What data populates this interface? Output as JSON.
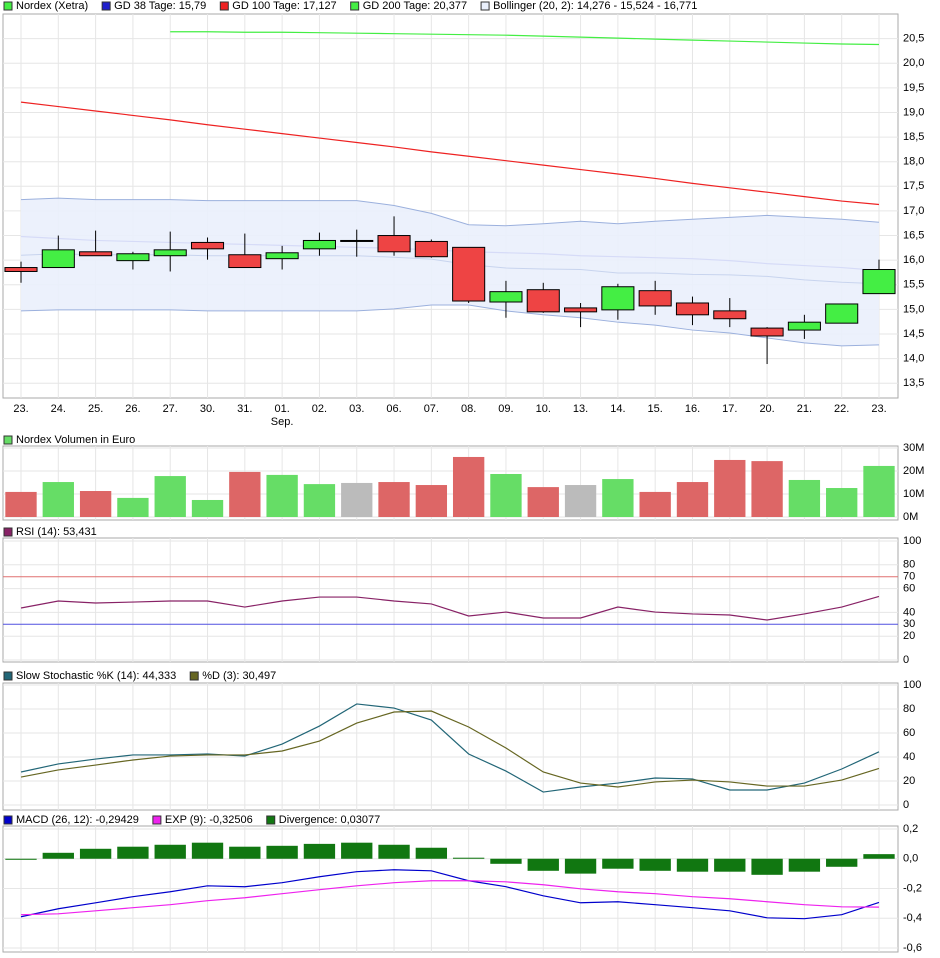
{
  "chart_data": [
    {
      "type": "candlestick",
      "categories": [
        "23.",
        "24.",
        "25.",
        "26.",
        "27.",
        "30.",
        "31.",
        "01.",
        "02.",
        "03.",
        "06.",
        "07.",
        "08.",
        "09.",
        "10.",
        "13.",
        "14.",
        "15.",
        "16.",
        "17.",
        "20.",
        "21.",
        "22.",
        "23."
      ],
      "sublabels": [
        null,
        null,
        null,
        null,
        null,
        null,
        null,
        "Sep.",
        null,
        null,
        null,
        null,
        null,
        null,
        null,
        null,
        null,
        null,
        null,
        null,
        null,
        null,
        null,
        null
      ],
      "ohlc": {
        "name": "Nordex (Xetra)",
        "up_color": "#44ee44",
        "down_color": "#ee4444",
        "flat_color": "#000000",
        "open": [
          15.85,
          15.85,
          16.17,
          15.99,
          16.09,
          16.36,
          16.11,
          16.03,
          16.23,
          16.4,
          16.5,
          16.38,
          16.26,
          15.15,
          15.4,
          15.03,
          14.99,
          15.38,
          15.13,
          14.97,
          14.62,
          14.58,
          14.72,
          15.32
        ],
        "high": [
          15.97,
          16.5,
          16.6,
          16.17,
          16.58,
          16.46,
          16.54,
          16.29,
          16.56,
          16.62,
          16.89,
          16.42,
          16.26,
          15.58,
          15.54,
          15.13,
          15.52,
          15.58,
          15.26,
          15.23,
          14.64,
          14.89,
          15.11,
          16.01
        ],
        "low": [
          15.54,
          15.85,
          16.09,
          15.81,
          15.77,
          16.01,
          15.85,
          15.81,
          16.09,
          16.07,
          16.09,
          16.05,
          15.13,
          14.83,
          14.93,
          14.64,
          14.79,
          14.89,
          14.68,
          14.64,
          13.89,
          14.4,
          14.72,
          15.32
        ],
        "close": [
          15.77,
          16.21,
          16.09,
          16.13,
          16.21,
          16.23,
          15.85,
          16.15,
          16.4,
          16.4,
          16.17,
          16.07,
          15.17,
          15.36,
          14.95,
          14.95,
          15.46,
          15.07,
          14.89,
          14.81,
          14.46,
          14.74,
          15.11,
          15.81
        ]
      },
      "series": [
        {
          "name": "GD 38 Tage: 15,79",
          "color": "#2020cc",
          "style": "line",
          "values": [
            16.48,
            16.44,
            16.4,
            16.38,
            16.36,
            16.34,
            16.32,
            16.3,
            16.28,
            16.26,
            16.24,
            16.21,
            16.17,
            16.15,
            16.13,
            16.09,
            16.07,
            16.05,
            16.03,
            15.99,
            15.93,
            15.89,
            15.85,
            15.79
          ]
        },
        {
          "name": "GD 100 Tage: 17,127",
          "color": "#ee2222",
          "style": "line",
          "values": [
            19.21,
            19.12,
            19.03,
            18.94,
            18.85,
            18.75,
            18.66,
            18.57,
            18.48,
            18.39,
            18.3,
            18.2,
            18.11,
            18.02,
            17.93,
            17.84,
            17.75,
            17.66,
            17.56,
            17.47,
            17.38,
            17.29,
            17.2,
            17.13
          ]
        },
        {
          "name": "GD 200 Tage: 20,377",
          "color": "#44ee44",
          "style": "line",
          "values": [
            null,
            null,
            null,
            null,
            20.64,
            20.64,
            20.63,
            20.63,
            20.62,
            20.61,
            20.6,
            20.59,
            20.58,
            20.57,
            20.55,
            20.53,
            20.51,
            20.49,
            20.47,
            20.45,
            20.43,
            20.41,
            20.39,
            20.38
          ]
        },
        {
          "name": "Bollinger (20, 2): 14,276 - 15,524 - 16,771",
          "color": "#9bb0dd",
          "fill": "#eaf0fc",
          "style": "band",
          "upper": [
            17.23,
            17.26,
            17.23,
            17.23,
            17.23,
            17.21,
            17.21,
            17.21,
            17.21,
            17.21,
            17.11,
            16.95,
            16.72,
            16.7,
            16.74,
            16.79,
            16.74,
            16.79,
            16.83,
            16.87,
            16.91,
            16.87,
            16.83,
            16.77
          ],
          "middle": [
            16.1,
            16.13,
            16.11,
            16.11,
            16.11,
            16.09,
            16.09,
            16.09,
            16.09,
            16.09,
            16.06,
            16.02,
            15.91,
            15.84,
            15.82,
            15.81,
            15.74,
            15.74,
            15.71,
            15.7,
            15.67,
            15.6,
            15.55,
            15.52
          ],
          "lower": [
            14.97,
            14.99,
            14.99,
            14.99,
            14.99,
            14.97,
            14.97,
            14.97,
            14.97,
            14.97,
            15.01,
            15.09,
            15.09,
            14.97,
            14.89,
            14.83,
            14.74,
            14.68,
            14.58,
            14.52,
            14.42,
            14.32,
            14.26,
            14.28
          ]
        }
      ],
      "ylim": [
        13.2,
        21.0
      ],
      "yticks": [
        {
          "value": 13.5,
          "label": "13,5"
        },
        {
          "value": 14,
          "label": "14,0"
        },
        {
          "value": 14.5,
          "label": "14,5"
        },
        {
          "value": 15,
          "label": "15,0"
        },
        {
          "value": 15.5,
          "label": "15,5"
        },
        {
          "value": 16,
          "label": "16,0"
        },
        {
          "value": 16.5,
          "label": "16,5"
        },
        {
          "value": 17,
          "label": "17,0"
        },
        {
          "value": 17.5,
          "label": "17,5"
        },
        {
          "value": 18,
          "label": "18,0"
        },
        {
          "value": 18.5,
          "label": "18,5"
        },
        {
          "value": 19,
          "label": "19,0"
        },
        {
          "value": 19.5,
          "label": "19,5"
        },
        {
          "value": 20,
          "label": "20,0"
        },
        {
          "value": 20.5,
          "label": "20,5"
        }
      ],
      "grid": true
    },
    {
      "type": "bar",
      "series": [
        {
          "name": "Nordex Volumen in Euro",
          "color": "#66dd66",
          "style": "bar",
          "values": [
            10.9,
            15.2,
            11.3,
            8.3,
            17.8,
            7.4,
            19.6,
            18.3,
            14.3,
            14.8,
            15.2,
            13.9,
            26.1,
            18.7,
            13.0,
            13.9,
            16.5,
            10.9,
            15.2,
            24.8,
            24.3,
            16.1,
            12.6,
            22.2
          ],
          "colors": [
            "#dd6666",
            "#66dd66",
            "#dd6666",
            "#66dd66",
            "#66dd66",
            "#66dd66",
            "#dd6666",
            "#66dd66",
            "#66dd66",
            "#bbbbbb",
            "#dd6666",
            "#dd6666",
            "#dd6666",
            "#66dd66",
            "#dd6666",
            "#bbbbbb",
            "#66dd66",
            "#dd6666",
            "#dd6666",
            "#dd6666",
            "#dd6666",
            "#66dd66",
            "#66dd66",
            "#66dd66"
          ]
        }
      ],
      "ylim": [
        0,
        30
      ],
      "yticks": [
        {
          "value": 0,
          "label": "0M"
        },
        {
          "value": 10,
          "label": "10M"
        },
        {
          "value": 20,
          "label": "20M"
        },
        {
          "value": 30,
          "label": "30M"
        }
      ],
      "grid": true
    },
    {
      "type": "line",
      "series": [
        {
          "name": "RSI (14): 53,431",
          "color": "#882266",
          "style": "line",
          "values": [
            43.7,
            49.6,
            47.9,
            48.7,
            49.6,
            49.6,
            44.5,
            49.6,
            52.9,
            52.9,
            49.6,
            47.1,
            37.0,
            40.3,
            35.3,
            35.3,
            44.5,
            40.3,
            38.7,
            37.8,
            33.6,
            38.7,
            44.5,
            53.4
          ]
        }
      ],
      "hlines": [
        {
          "value": 70,
          "color": "#e07070"
        },
        {
          "value": 30,
          "color": "#5050e0"
        }
      ],
      "ylim": [
        0,
        100
      ],
      "yticks": [
        0,
        20,
        40,
        60,
        80,
        100
      ],
      "grid": true
    },
    {
      "type": "line",
      "series": [
        {
          "name": "Slow Stochastic %K (14): 44,333",
          "color": "#226677",
          "style": "line",
          "values": [
            27.5,
            34.2,
            38.3,
            41.7,
            41.7,
            42.5,
            40.8,
            50.8,
            65.8,
            84.2,
            80.8,
            70.8,
            42.5,
            28.3,
            10.8,
            15.0,
            18.3,
            22.5,
            21.7,
            12.5,
            12.5,
            18.3,
            30.0,
            44.3
          ]
        },
        {
          "name": "%D (3): 30,497",
          "color": "#666622",
          "style": "line",
          "values": [
            23.3,
            29.2,
            33.3,
            37.5,
            40.8,
            41.7,
            41.7,
            45.0,
            53.3,
            68.3,
            77.5,
            78.3,
            65.0,
            47.5,
            27.5,
            18.3,
            15.0,
            19.2,
            20.8,
            19.2,
            15.8,
            15.8,
            20.8,
            30.5
          ]
        }
      ],
      "ylim": [
        0,
        100
      ],
      "yticks": [
        0,
        20,
        40,
        60,
        80,
        100
      ],
      "grid": true
    },
    {
      "type": "combo",
      "series": [
        {
          "name": "MACD (26, 12): -0,29429",
          "color": "#0000cc",
          "style": "line",
          "values": [
            -0.39,
            -0.336,
            -0.296,
            -0.255,
            -0.222,
            -0.182,
            -0.188,
            -0.161,
            -0.121,
            -0.087,
            -0.074,
            -0.081,
            -0.148,
            -0.188,
            -0.249,
            -0.296,
            -0.289,
            -0.309,
            -0.329,
            -0.35,
            -0.397,
            -0.403,
            -0.376,
            -0.294
          ]
        },
        {
          "name": "EXP (9): -0,32506",
          "color": "#ee22ee",
          "style": "line",
          "values": [
            -0.376,
            -0.37,
            -0.35,
            -0.329,
            -0.309,
            -0.282,
            -0.262,
            -0.235,
            -0.208,
            -0.182,
            -0.161,
            -0.148,
            -0.148,
            -0.155,
            -0.175,
            -0.202,
            -0.222,
            -0.235,
            -0.255,
            -0.269,
            -0.289,
            -0.309,
            -0.323,
            -0.325
          ]
        },
        {
          "name": "Divergence: 0,03077",
          "color": "#117711",
          "style": "bar",
          "values": [
            -0.007,
            0.04,
            0.067,
            0.081,
            0.094,
            0.108,
            0.081,
            0.087,
            0.1,
            0.108,
            0.094,
            0.074,
            0.007,
            -0.034,
            -0.081,
            -0.1,
            -0.067,
            -0.081,
            -0.087,
            -0.087,
            -0.108,
            -0.087,
            -0.054,
            0.031
          ]
        }
      ],
      "ylim": [
        -0.6,
        0.2
      ],
      "yticks": [
        {
          "value": -0.6,
          "label": "-0,6"
        },
        {
          "value": -0.4,
          "label": "-0,4"
        },
        {
          "value": -0.2,
          "label": "-0,2"
        },
        {
          "value": 0,
          "label": "0,0"
        },
        {
          "value": 0.2,
          "label": "0,2"
        }
      ],
      "grid": true
    }
  ]
}
